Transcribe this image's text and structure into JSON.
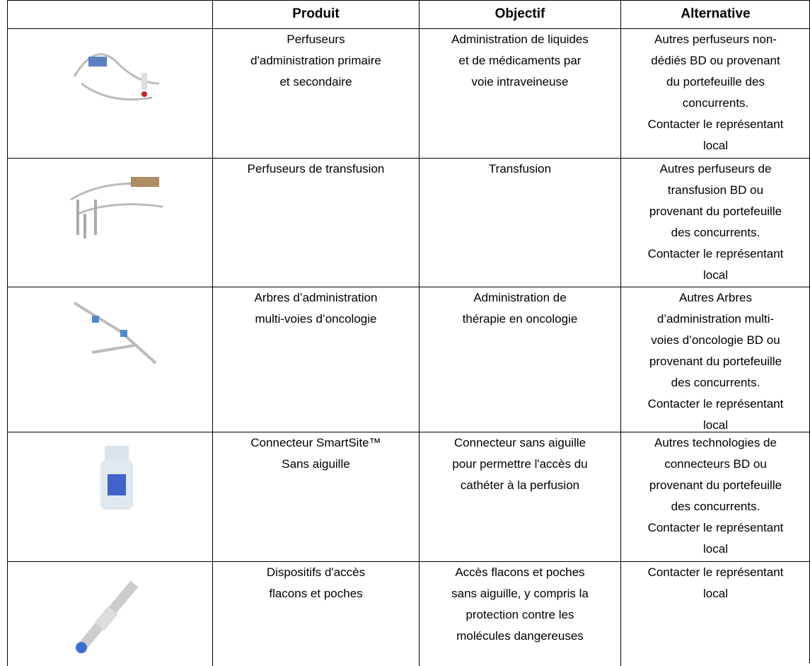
{
  "table": {
    "header": [
      "Produit",
      "Objectif",
      "Alternative"
    ],
    "rows": [
      [
        [
          "Perfuseurs",
          "d'administration primaire",
          "et secondaire"
        ],
        [
          "Administration de liquides",
          "et de médicaments par",
          "voie intraveineuse"
        ],
        [
          "Autres perfuseurs non-",
          "dédiés BD ou provenant",
          "du portefeuille des",
          "concurrents.",
          "Contacter le représentant",
          "local"
        ]
      ],
      [
        [
          "Perfuseurs de transfusion"
        ],
        [
          "Transfusion"
        ],
        [
          "Autres perfuseurs de",
          "transfusion BD ou",
          "provenant du portefeuille",
          "des concurrents.",
          "Contacter le représentant",
          "local"
        ]
      ],
      [
        [
          "Arbres d’administration",
          "multi-voies d’oncologie"
        ],
        [
          "Administration de",
          "thérapie en oncologie"
        ],
        [
          "Autres Arbres",
          "d’administration multi-",
          "voies d’oncologie BD ou",
          "provenant du portefeuille",
          "des concurrents.",
          "Contacter le représentant",
          "local"
        ]
      ],
      [
        [
          "Connecteur SmartSite™",
          "Sans aiguille"
        ],
        [
          "Connecteur sans aiguille",
          "pour permettre l'accès du",
          "cathéter à la perfusion"
        ],
        [
          "Autres technologies de",
          "connecteurs BD ou",
          "provenant du portefeuille",
          "des concurrents.",
          "Contacter le représentant",
          "local"
        ]
      ],
      [
        [
          "Dispositifs d'accès",
          "flacons et poches"
        ],
        [
          "Accès flacons et poches",
          "sans aiguille, y compris la",
          "protection contre les",
          "molécules dangereuses"
        ],
        [
          "Contacter le représentant",
          "local"
        ]
      ]
    ]
  }
}
